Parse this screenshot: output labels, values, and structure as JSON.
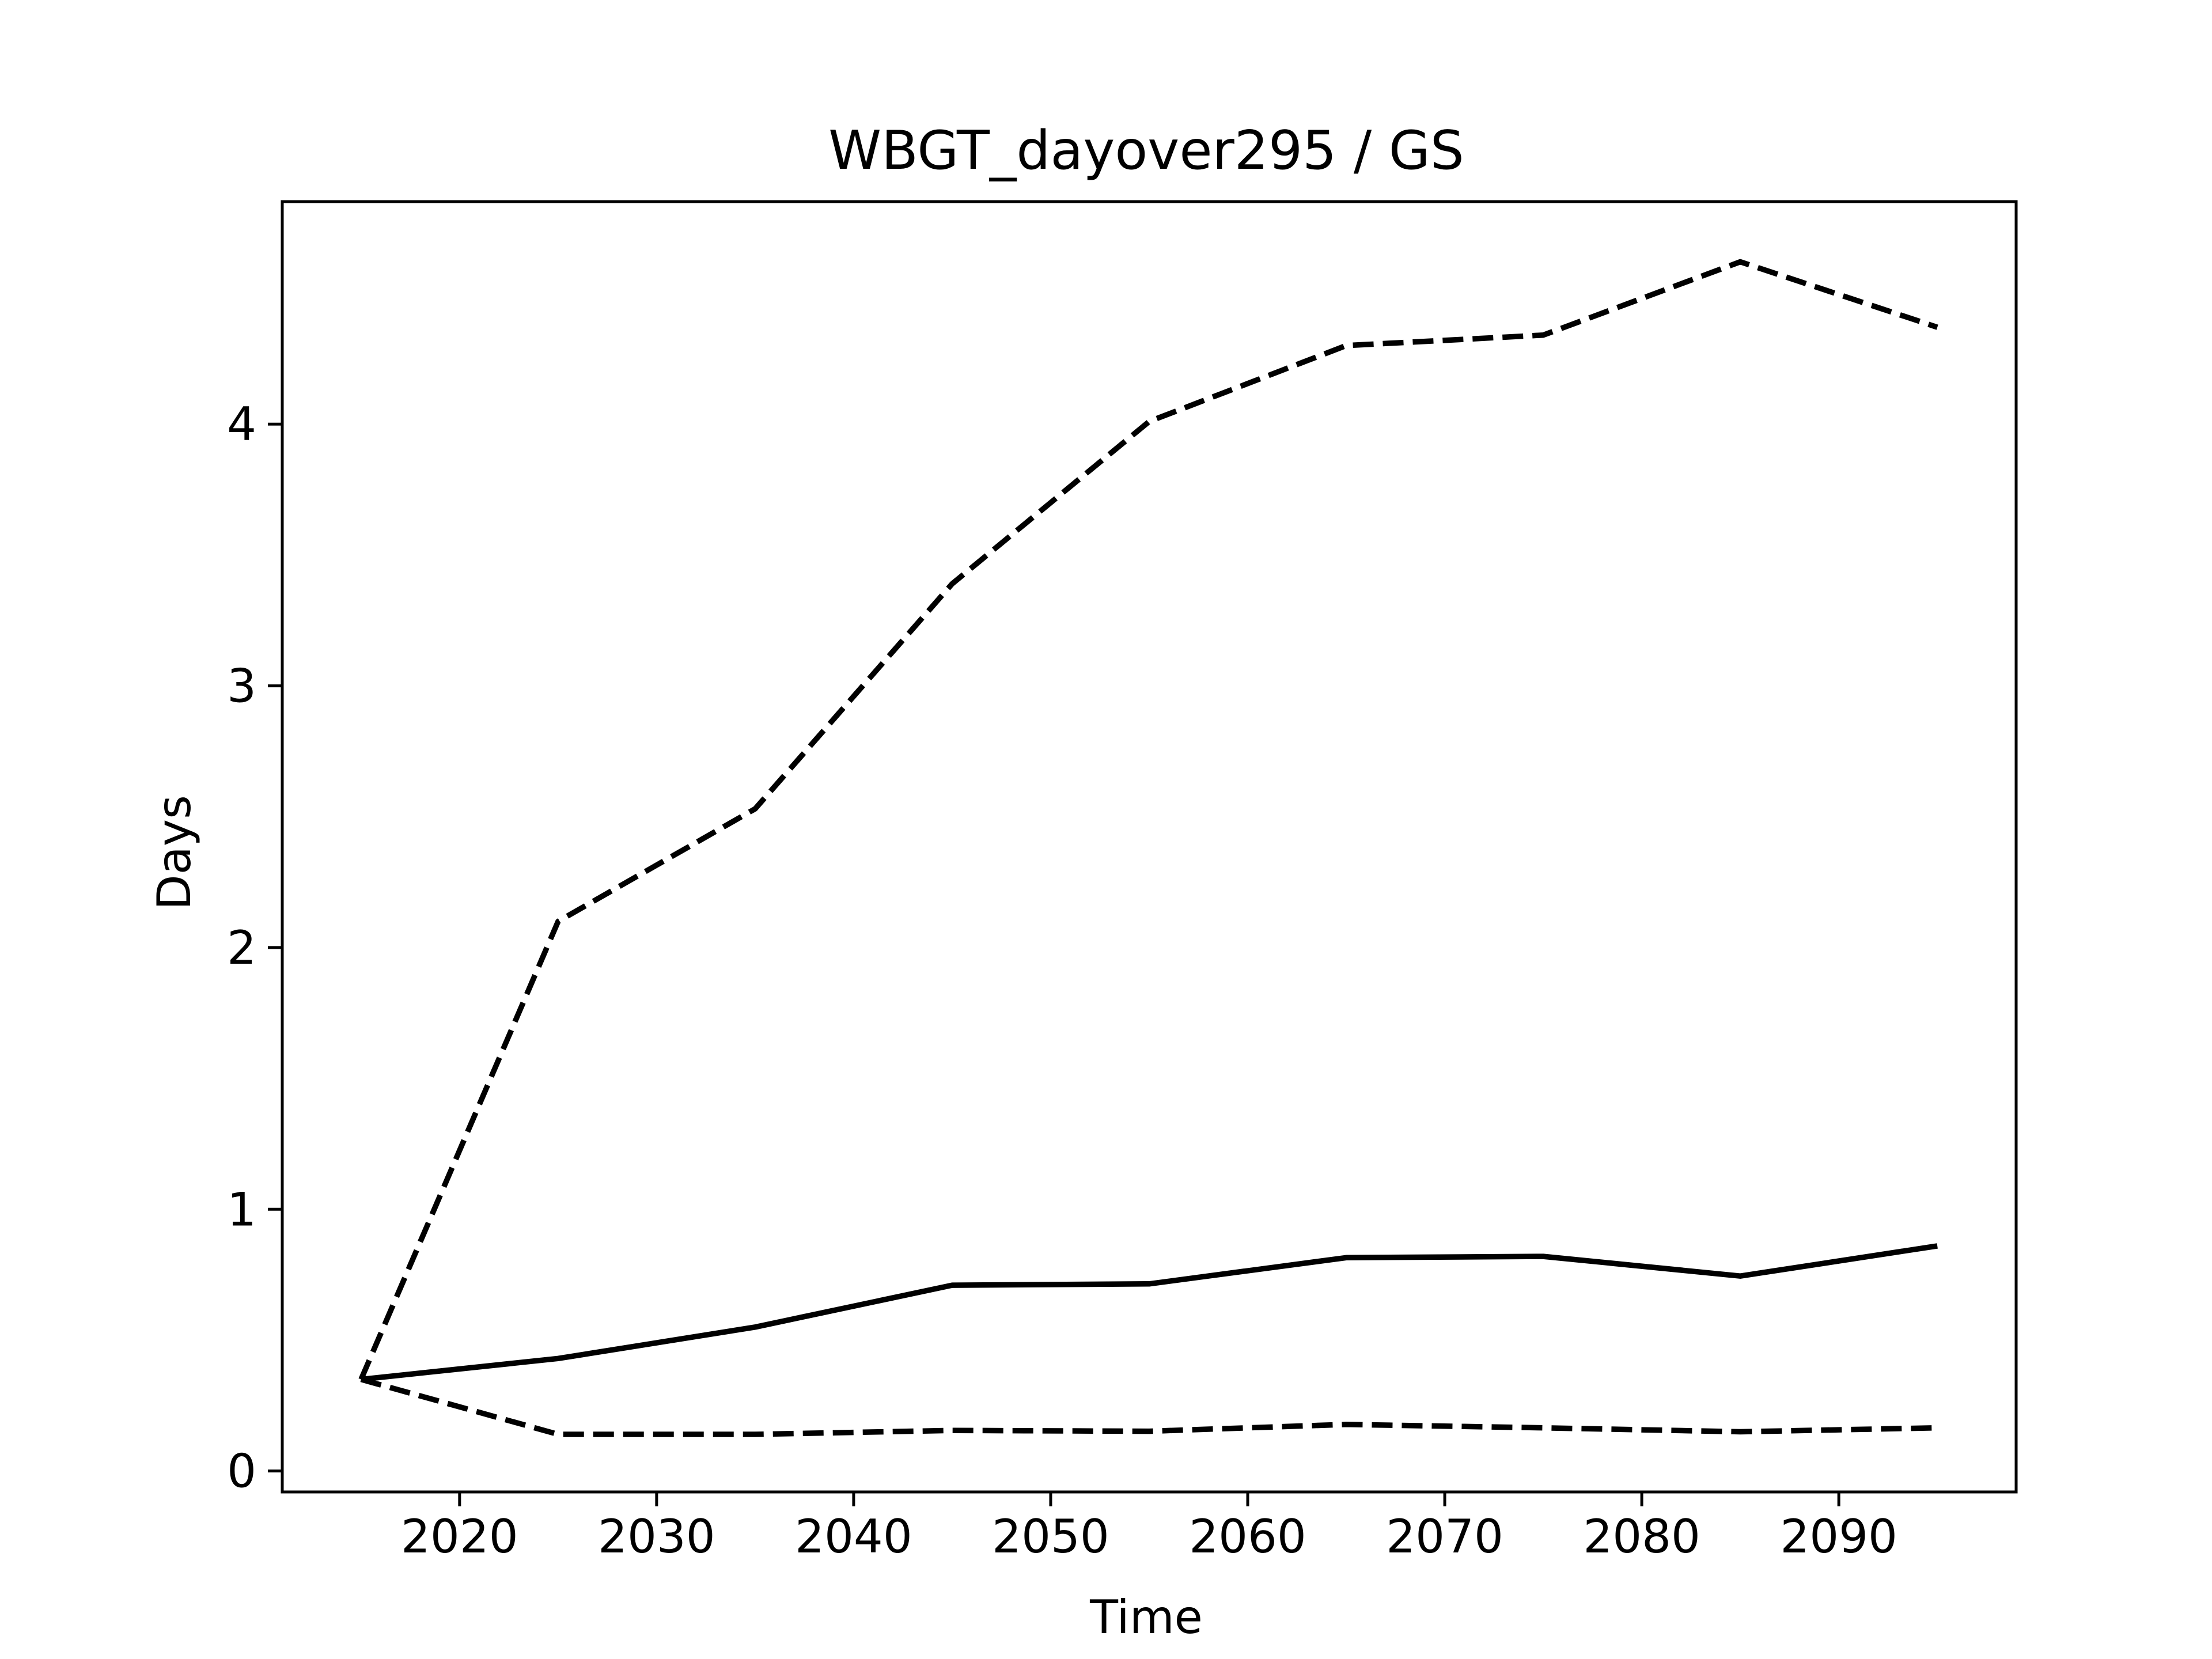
{
  "chart_data": {
    "type": "line",
    "title": "WBGT_dayover295 / GS",
    "xlabel": "Time",
    "ylabel": "Days",
    "xlim": [
      2011,
      2099
    ],
    "ylim": [
      -0.08,
      4.85
    ],
    "xticks": [
      2020,
      2030,
      2040,
      2050,
      2060,
      2070,
      2080,
      2090
    ],
    "yticks": [
      0,
      1,
      2,
      3,
      4
    ],
    "grid": false,
    "x": [
      2015,
      2025,
      2035,
      2045,
      2055,
      2065,
      2075,
      2085,
      2095
    ],
    "series": [
      {
        "style": "solid",
        "color": "#000000",
        "values": [
          0.35,
          0.43,
          0.55,
          0.71,
          0.715,
          0.815,
          0.82,
          0.745,
          0.86
        ]
      },
      {
        "style": "dashed",
        "color": "#000000",
        "values": [
          0.35,
          2.1,
          2.53,
          3.39,
          4.01,
          4.3,
          4.34,
          4.62,
          4.37
        ]
      },
      {
        "style": "dashed",
        "color": "#000000",
        "values": [
          0.35,
          0.14,
          0.14,
          0.155,
          0.152,
          0.178,
          0.165,
          0.15,
          0.165
        ]
      }
    ]
  }
}
